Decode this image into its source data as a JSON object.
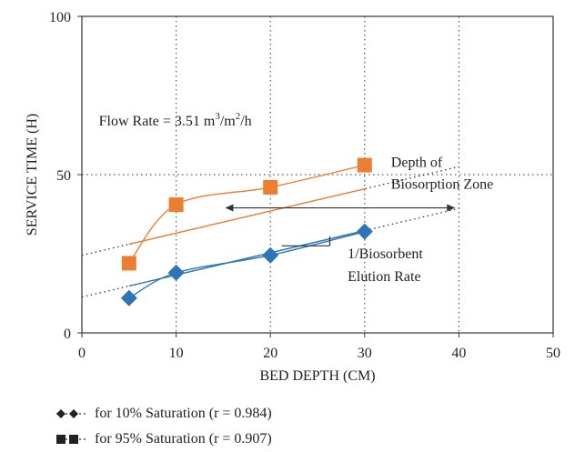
{
  "chart_data": {
    "type": "scatter",
    "xlabel": "BED DEPTH (CM)",
    "ylabel": "SERVICE TIME (H)",
    "xlim": [
      0,
      50
    ],
    "ylim": [
      0,
      100
    ],
    "xticks": [
      "0",
      "10",
      "20",
      "30",
      "40",
      "50"
    ],
    "yticks": [
      "0",
      "50",
      "100"
    ],
    "grid": "dotted vertical at x=10,20,30,40; dotted horizontal at y=50",
    "annotations": {
      "flow_rate_prefix": "Flow Rate = 3.51 m",
      "flow_rate_sup1": "3",
      "flow_rate_mid": "/m",
      "flow_rate_sup2": "2",
      "flow_rate_suffix": "/h",
      "depth_zone_line1": "Depth of",
      "depth_zone_line2": "Biosorption Zone",
      "elution_line1": "1/Biosorbent",
      "elution_line2": "Elution Rate"
    },
    "series": [
      {
        "name": "for 10% Saturation (r = 0.984)",
        "marker": "diamond",
        "color": "#2e75b6",
        "x": [
          5,
          10,
          20,
          30
        ],
        "y": [
          11,
          19,
          24.5,
          32
        ],
        "trend_fit": {
          "intercept": 11.3,
          "slope": 0.7
        }
      },
      {
        "name": "for 95% Saturation (r = 0.907)",
        "marker": "square",
        "color": "#ed7d31",
        "x": [
          5,
          10,
          20,
          30
        ],
        "y": [
          22,
          40.5,
          46,
          53
        ],
        "trend_fit": {
          "intercept": 24.5,
          "slope": 0.7
        }
      }
    ],
    "legend_position": "bottom-left"
  }
}
